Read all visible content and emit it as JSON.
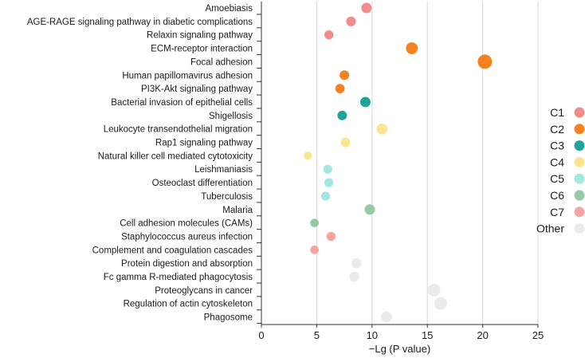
{
  "chart_data": {
    "type": "scatter",
    "title": "",
    "xlabel": "−Lg (P value)",
    "ylabel": "",
    "xlim": [
      0,
      25
    ],
    "xticks": [
      0,
      5,
      10,
      15,
      20,
      25
    ],
    "grid": "vertical",
    "legend_position": "right",
    "size_encoding": "point size increases with −Lg (P value)",
    "legend": [
      {
        "name": "C1",
        "color": "#f08c8c"
      },
      {
        "name": "C2",
        "color": "#f5821f"
      },
      {
        "name": "C3",
        "color": "#1fa39a"
      },
      {
        "name": "C4",
        "color": "#fbe690"
      },
      {
        "name": "C5",
        "color": "#a3e8df"
      },
      {
        "name": "C6",
        "color": "#96c9a8"
      },
      {
        "name": "C7",
        "color": "#f5a4a4"
      },
      {
        "name": "Other",
        "color": "#ebebeb"
      }
    ],
    "points": [
      {
        "label": "Amoebiasis",
        "x": 9.5,
        "cluster": "C1"
      },
      {
        "label": "AGE-RAGE signaling pathway in diabetic complications",
        "x": 8.1,
        "cluster": "C1"
      },
      {
        "label": "Relaxin signaling pathway",
        "x": 6.1,
        "cluster": "C1"
      },
      {
        "label": "ECM-receptor interaction",
        "x": 13.6,
        "cluster": "C2"
      },
      {
        "label": "Focal adhesion",
        "x": 20.2,
        "cluster": "C2"
      },
      {
        "label": "Human papillomavirus adhesion",
        "x": 7.5,
        "cluster": "C2"
      },
      {
        "label": "PI3K-Akt signaling pathway",
        "x": 7.1,
        "cluster": "C2"
      },
      {
        "label": "Bacterial invasion of epithelial cells",
        "x": 9.4,
        "cluster": "C3"
      },
      {
        "label": "Shigellosis",
        "x": 7.3,
        "cluster": "C3"
      },
      {
        "label": "Leukocyte transendothelial migration",
        "x": 10.9,
        "cluster": "C4"
      },
      {
        "label": "Rap1 signaling pathway",
        "x": 7.6,
        "cluster": "C4"
      },
      {
        "label": "Natural killer cell mediated cytotoxicity",
        "x": 4.2,
        "cluster": "C4"
      },
      {
        "label": "Leishmaniasis",
        "x": 6.0,
        "cluster": "C5"
      },
      {
        "label": "Osteoclast differentiation",
        "x": 6.1,
        "cluster": "C5"
      },
      {
        "label": "Tuberculosis",
        "x": 5.8,
        "cluster": "C5"
      },
      {
        "label": "Malaria",
        "x": 9.8,
        "cluster": "C6"
      },
      {
        "label": "Cell adhesion molecules (CAMs)",
        "x": 4.8,
        "cluster": "C6"
      },
      {
        "label": "Staphylococcus aureus infection",
        "x": 6.3,
        "cluster": "C7"
      },
      {
        "label": "Complement and coagulation cascades",
        "x": 4.8,
        "cluster": "C7"
      },
      {
        "label": "Protein digestion and absorption",
        "x": 8.6,
        "cluster": "Other"
      },
      {
        "label": "Fc gamma R-mediated phagocytosis",
        "x": 8.4,
        "cluster": "Other"
      },
      {
        "label": "Proteoglycans in cancer",
        "x": 15.6,
        "cluster": "Other"
      },
      {
        "label": "Regulation of actin cytoskeleton",
        "x": 16.2,
        "cluster": "Other"
      },
      {
        "label": "Phagosome",
        "x": 11.3,
        "cluster": "Other"
      }
    ]
  }
}
